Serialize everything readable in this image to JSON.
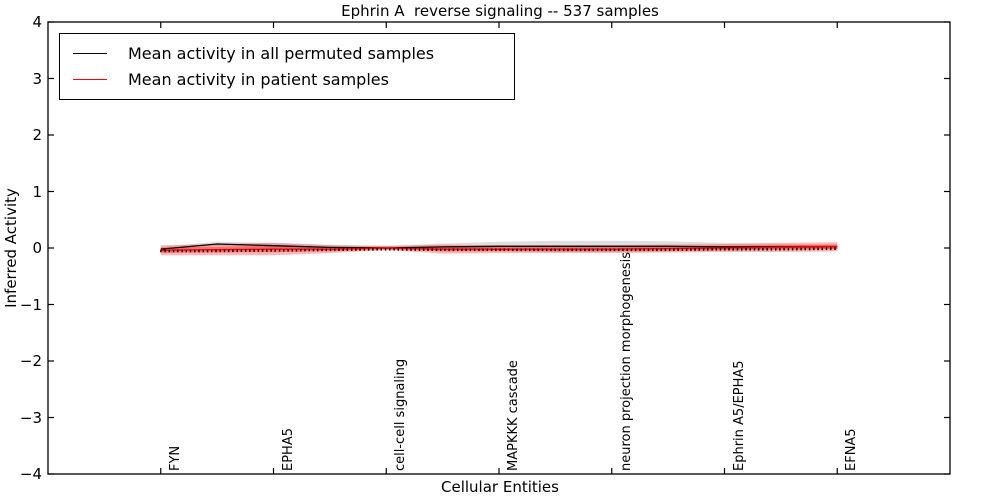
{
  "figure": {
    "background": "#ffffff",
    "frame_color": "#000000"
  },
  "chart_data": {
    "type": "line",
    "title": "Ephrin A  reverse signaling -- 537 samples",
    "xlabel": "Cellular Entities",
    "ylabel": "Inferred Activity",
    "ylim": [
      -4,
      4
    ],
    "yticks": [
      4,
      3,
      2,
      1,
      0,
      -1,
      -2,
      -3,
      -4
    ],
    "ytick_labels": [
      "4",
      "3",
      "2",
      "1",
      "0",
      "−1",
      "−2",
      "−3",
      "−4"
    ],
    "x_index_range": [
      -1,
      7
    ],
    "categories": [
      "FYN",
      "EPHA5",
      "cell-cell signaling",
      "MAPKKK cascade",
      "neuron projection morphogenesis",
      "Ephrin A5/EPHA5",
      "EFNA5"
    ],
    "category_positions": [
      0,
      1,
      2,
      3,
      4,
      5,
      6
    ],
    "x": [
      0,
      0.5,
      1,
      1.5,
      2,
      2.5,
      3,
      3.5,
      4,
      4.5,
      5,
      5.5,
      6
    ],
    "series": [
      {
        "name": "Mean activity in all permuted samples",
        "color": "#000000",
        "style": "solid",
        "values": [
          -0.02,
          0.07,
          0.04,
          0.01,
          0.0,
          0.02,
          0.03,
          0.03,
          0.03,
          0.03,
          0.02,
          0.02,
          0.02
        ]
      },
      {
        "name": "Mean activity in patient samples",
        "color": "#ff0000",
        "style": "solid",
        "values": [
          -0.04,
          -0.03,
          -0.02,
          -0.02,
          0.0,
          -0.02,
          -0.02,
          -0.02,
          -0.02,
          -0.01,
          0.0,
          0.01,
          0.02
        ]
      }
    ],
    "dotted_marker_series": {
      "name": "per-entity markers",
      "color": "#000000",
      "values": [
        -0.04,
        -0.04,
        -0.03,
        -0.02,
        -0.01,
        -0.02,
        -0.02,
        -0.02,
        -0.02,
        -0.02,
        -0.01,
        -0.01,
        0.0
      ]
    },
    "bands": [
      {
        "name": "permuted samples spread",
        "color": "rgba(0,0,0,0.13)",
        "center_series": 0,
        "half_widths": [
          0.04,
          0.04,
          0.05,
          0.05,
          0.04,
          0.06,
          0.08,
          0.1,
          0.1,
          0.09,
          0.07,
          0.05,
          0.04
        ]
      },
      {
        "name": "patient samples spread",
        "color": "rgba(255,0,0,0.28)",
        "center_series": 1,
        "half_widths": [
          0.09,
          0.1,
          0.11,
          0.07,
          0.035,
          0.08,
          0.07,
          0.07,
          0.07,
          0.07,
          0.07,
          0.08,
          0.08
        ]
      },
      {
        "name": "patient samples spread core",
        "color": "rgba(255,0,0,0.38)",
        "center_series": 1,
        "half_widths": [
          0.045,
          0.05,
          0.055,
          0.035,
          0.02,
          0.04,
          0.035,
          0.035,
          0.035,
          0.035,
          0.035,
          0.04,
          0.04
        ]
      }
    ],
    "legend": {
      "position": "upper left",
      "entries": [
        "Mean activity in all permuted samples",
        "Mean activity in patient samples"
      ],
      "colors": [
        "#000000",
        "#ff0000"
      ]
    }
  }
}
